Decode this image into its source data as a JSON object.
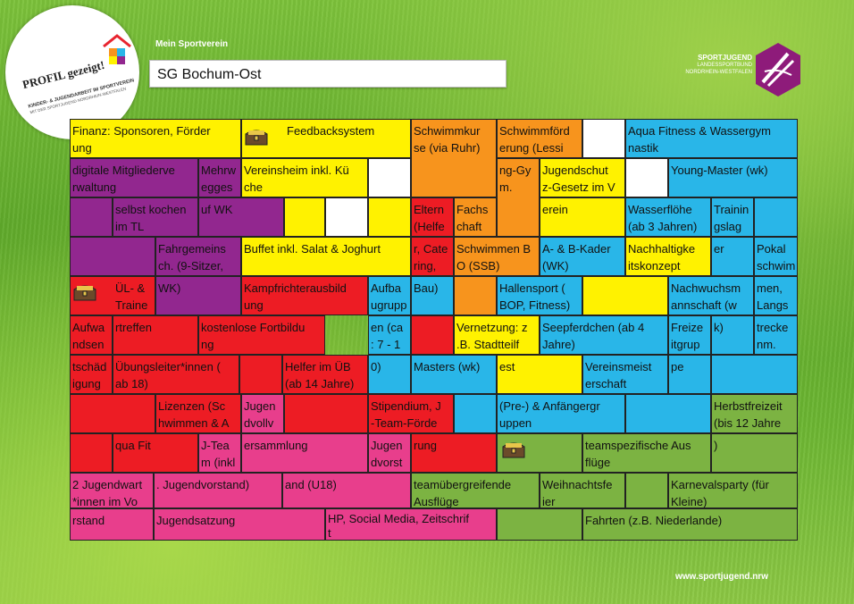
{
  "header": {
    "logo_left": {
      "line1": "PROFIL gezeigt!",
      "line2": "KINDER- & JUGENDARBEIT IM SPORTVEREIN",
      "line3": "MIT DER SPORTJUGEND NORDRHEIN-WESTFALEN"
    },
    "label": "Mein Sportverein",
    "club_name": "SG Bochum-Ost",
    "logo_right": {
      "line1": "SPORTJUGEND",
      "line2": "LANDESSPORTBUND",
      "line3": "NORDRHEIN-WESTFALEN"
    }
  },
  "footer": {
    "url": "www.sportjugend.nrw"
  },
  "colors": {
    "yellow": "#fff200",
    "orange": "#f7941d",
    "cyan": "#29b6e8",
    "purple": "#92278f",
    "red": "#ed1c24",
    "green": "#7cb342",
    "pink": "#e83e8c"
  },
  "tiles": {
    "t01": "Finanz: Sponsoren, Förder\nung",
    "t02": "Feedbacksystem",
    "t03": "Schwimmkur\nse (via Ruhr)",
    "t04": "Schwimmförd\nerung (Lessi",
    "t05": "Aqua Fitness & Wassergym\nnastik",
    "t06": "digitale Mitgliederve\nrwaltung",
    "t07": "Mehrw\negges",
    "t08": "Vereinsheim inkl. Kü\nche",
    "t09": "ng-Gy\nm.",
    "t10": "Jugendschut\nz-Gesetz im V",
    "t11": "Young-Master (wk)",
    "t12": "selbst kochen\nim TL",
    "t13": "uf WK",
    "t14": "Eltern\n(Helfe",
    "t15": "Fachs\nchaft",
    "t16": "erein",
    "t17": "Wasserflöhe\n(ab 3 Jahren)",
    "t18": "Trainin\ngslag",
    "t19": "Fahrgemeins\nch. (9-Sitzer,",
    "t20": "Buffet inkl. Salat & Joghurt",
    "t21": "r, Cate\nring,",
    "t22": "Schwimmen B\nO (SSB)",
    "t23": "A- & B-Kader\n(WK)",
    "t24": "Nachhaltigke\nitskonzept",
    "t25": "er",
    "t26": "Pokal\nschwim",
    "t27": "ÜL- &\nTraine",
    "t28": "WK)",
    "t29": "Kampfrichterausbild\nung",
    "t30": "Aufba\nugrupp",
    "t31": "Bau)",
    "t32": "Hallensport (\nBOP, Fitness)",
    "t33": "Nachwuchsm\nannschaft (w",
    "t34": "men,\nLangs",
    "t35": "Aufwa\nndsen",
    "t36": "rtreffen",
    "t37": "kostenlose Fortbildu\nng",
    "t38": "en (ca\n: 7 - 1",
    "t39": "Vernetzung: z\n.B. Stadtteilf",
    "t40": "Seepferdchen (ab 4\nJahre)",
    "t41": "Freize\nitgrup",
    "t42": "k)",
    "t43": "trecke\nnm.",
    "t44": "tschäd\nigung",
    "t45": "Übungsleiter*innen (\nab 18)",
    "t46": "Helfer im ÜB\n(ab 14 Jahre)",
    "t47": "0)",
    "t48": "Masters (wk)",
    "t49": "est",
    "t50": "Vereinsmeist\nerschaft",
    "t51": "pe",
    "t52": "Lizenzen (Sc\nhwimmen & A",
    "t53": "Jugen\ndvollv",
    "t54": "Stipendium, J\n-Team-Förde",
    "t55": "(Pre-) & Anfängergr\nuppen",
    "t56": "Herbstfreizeit\n(bis 12 Jahre",
    "t57": "qua Fit",
    "t58": "J-Tea\nm (inkl",
    "t59": "ersammlung",
    "t60": "Jugen\ndvorst",
    "t61": "rung",
    "t62": "teamspezifische Aus\nflüge",
    "t63": ")",
    "t64": "2 Jugendwart\n*innen im Vo",
    "t65": ". Jugendvorstand)",
    "t66": "and (U18)",
    "t67": "teamübergreifende\nAusflüge",
    "t68": "Weihnachtsfe\nier",
    "t69": "Karnevalsparty (für\nKleine)",
    "t70": "rstand",
    "t71": "Jugendsatzung",
    "t72": "HP, Social Media, Zeitschrif\nt",
    "t73": "Fahrten (z.B. Niederlande)"
  }
}
